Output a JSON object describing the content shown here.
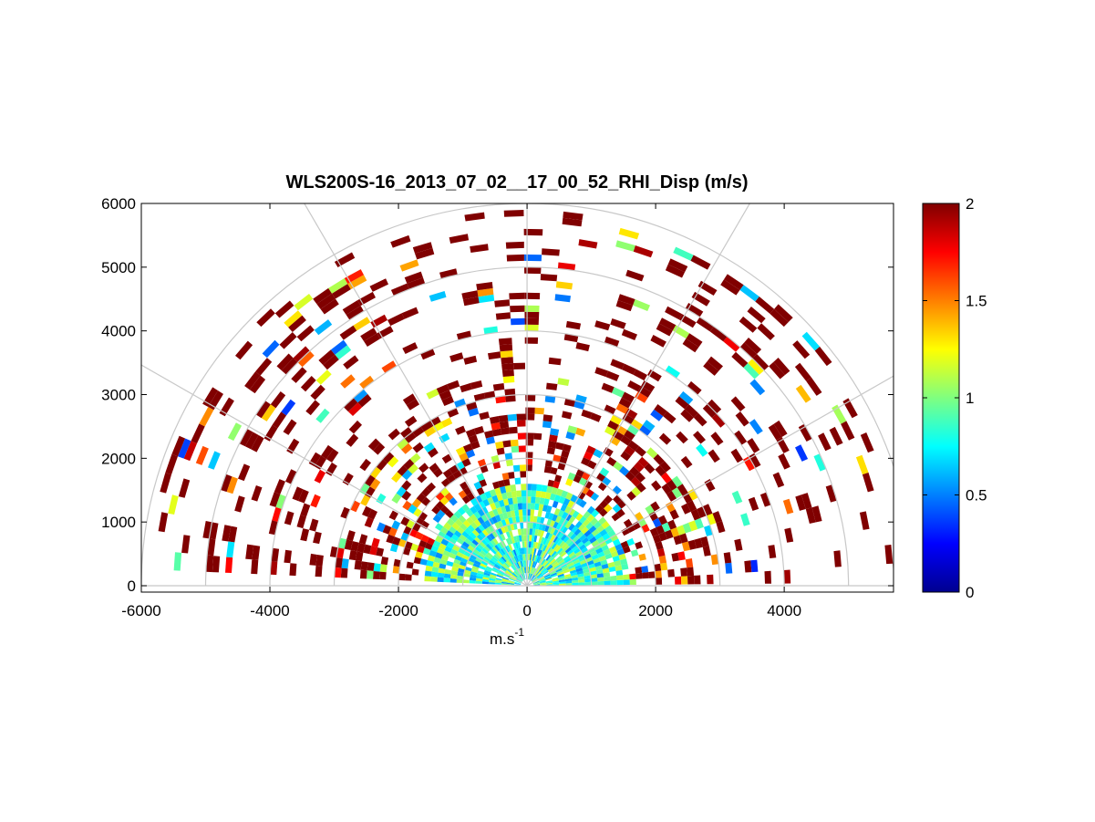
{
  "chart_data": {
    "type": "heatmap",
    "projection": "polar RHI (range-height indicator)",
    "title": "WLS200S-16_2013_07_02__17_00_52_RHI_Disp (m/s)",
    "xlabel": "m.s",
    "xlabel_superscript": "-1",
    "ylabel": "",
    "xlim": [
      -6000,
      5700
    ],
    "ylim": [
      -100,
      6000
    ],
    "x_ticks": [
      -6000,
      -4000,
      -2000,
      0,
      2000,
      4000
    ],
    "y_ticks": [
      0,
      1000,
      2000,
      3000,
      4000,
      5000,
      6000
    ],
    "polar_range_rings": [
      1000,
      2000,
      3000,
      4000,
      5000,
      6000
    ],
    "polar_spokes_deg": [
      0,
      30,
      60,
      90,
      120,
      150,
      180
    ],
    "grid": true,
    "colorbar": {
      "colormap": "jet",
      "range": [
        0,
        2
      ],
      "ticks": [
        0,
        0.5,
        1,
        1.5,
        2
      ],
      "tick_labels": [
        "0",
        "0.5",
        "1",
        "1.5",
        "2"
      ],
      "placement": "right"
    },
    "beams_elevation_deg": [
      2,
      5,
      8,
      11,
      14,
      17,
      20,
      23,
      26,
      29,
      32,
      35,
      38,
      41,
      44,
      47,
      50,
      53,
      56,
      59,
      62,
      65,
      68,
      71,
      74,
      77,
      80,
      83,
      86,
      89,
      92,
      95,
      98,
      101,
      104,
      107,
      110,
      113,
      116,
      119,
      122,
      125,
      128,
      131,
      134,
      137,
      140,
      143,
      146,
      149,
      152,
      155,
      158,
      161,
      164,
      167,
      170,
      173,
      176
    ],
    "gate_spacing_m": 100,
    "near_field_value_range": [
      0.5,
      1.2
    ],
    "far_field_value": 2,
    "max_observed_range_m": 5900
  }
}
